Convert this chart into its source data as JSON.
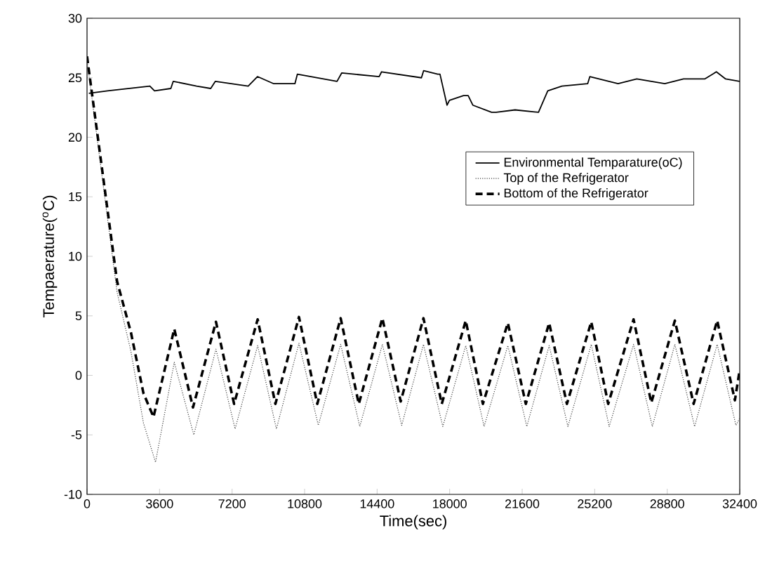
{
  "chart_data": {
    "type": "line",
    "xlabel": "Time(sec)",
    "ylabel": "Tempaerature($^{o}$C)",
    "xlim": [
      0,
      32400
    ],
    "xticks": [
      0,
      3600,
      7200,
      10800,
      14400,
      18000,
      21600,
      25200,
      28800,
      32400
    ],
    "ylim": [
      -10,
      30
    ],
    "yticks": [
      -10,
      -5,
      0,
      5,
      10,
      15,
      20,
      25,
      30
    ],
    "grid": false,
    "legend": "right",
    "marker": "none",
    "series": [
      {
        "name": "Environmental Temparature(oC)",
        "color": "#000000",
        "line_style": "solid",
        "x": [
          90,
          1020,
          3120,
          3350,
          4160,
          4280,
          5440,
          6140,
          6370,
          8000,
          8460,
          9270,
          10320,
          10440,
          12410,
          12640,
          14500,
          14620,
          16600,
          16710,
          17410,
          17520,
          17870,
          17990,
          18690,
          18920,
          19150,
          20080,
          20310,
          21250,
          22410,
          22870,
          23570,
          24850,
          24960,
          26360,
          27290,
          28680,
          29610,
          30660,
          31240,
          31700,
          32400
        ],
        "values": [
          23.7,
          23.9,
          24.3,
          23.9,
          24.1,
          24.7,
          24.3,
          24.1,
          24.7,
          24.3,
          25.1,
          24.5,
          24.5,
          25.3,
          24.7,
          25.4,
          25.1,
          25.5,
          25.0,
          25.6,
          25.3,
          25.3,
          22.7,
          23.1,
          23.5,
          23.5,
          22.7,
          22.1,
          22.1,
          22.3,
          22.1,
          23.9,
          24.3,
          24.5,
          25.1,
          24.5,
          24.9,
          24.5,
          24.9,
          24.9,
          25.5,
          24.9,
          24.7
        ]
      },
      {
        "name": "Top of the Refrigerator",
        "color": "#404040",
        "line_style": "dotted",
        "x": [
          0,
          1490,
          2180,
          2800,
          3400,
          4330,
          5300,
          6400,
          7350,
          8470,
          9400,
          10520,
          11480,
          12590,
          13540,
          14660,
          15620,
          16700,
          17660,
          18800,
          19710,
          20890,
          21830,
          22940,
          23870,
          25030,
          25920,
          27130,
          28060,
          29180,
          30160,
          31280,
          32210,
          32400
        ],
        "values": [
          26.5,
          7.0,
          2.0,
          -4.0,
          -7.3,
          1.1,
          -5.0,
          2.2,
          -4.5,
          2.5,
          -4.5,
          2.7,
          -4.2,
          2.6,
          -4.3,
          2.6,
          -4.2,
          2.6,
          -4.3,
          2.5,
          -4.3,
          2.5,
          -4.3,
          2.5,
          -4.3,
          2.6,
          -4.3,
          2.6,
          -4.3,
          2.6,
          -4.3,
          2.6,
          -4.2,
          -3.6
        ]
      },
      {
        "name": "Bottom of the Refrigerator",
        "color": "#000000",
        "line_style": "dashed",
        "x": [
          0,
          1490,
          2180,
          2800,
          3300,
          4330,
          5260,
          6400,
          7300,
          8470,
          9350,
          10520,
          11430,
          12590,
          13490,
          14660,
          15570,
          16700,
          17610,
          18800,
          19650,
          20890,
          21780,
          22940,
          23820,
          25030,
          25870,
          27130,
          28010,
          29180,
          30110,
          31280,
          32160,
          32400
        ],
        "values": [
          26.8,
          7.9,
          3.6,
          -1.5,
          -3.5,
          3.9,
          -2.7,
          4.5,
          -2.4,
          4.7,
          -2.4,
          4.9,
          -2.4,
          4.8,
          -2.4,
          4.8,
          -2.2,
          4.8,
          -2.4,
          4.6,
          -2.4,
          4.4,
          -2.4,
          4.4,
          -2.4,
          4.5,
          -2.4,
          4.7,
          -2.3,
          4.6,
          -2.4,
          4.6,
          -2.1,
          0.5
        ]
      }
    ]
  }
}
